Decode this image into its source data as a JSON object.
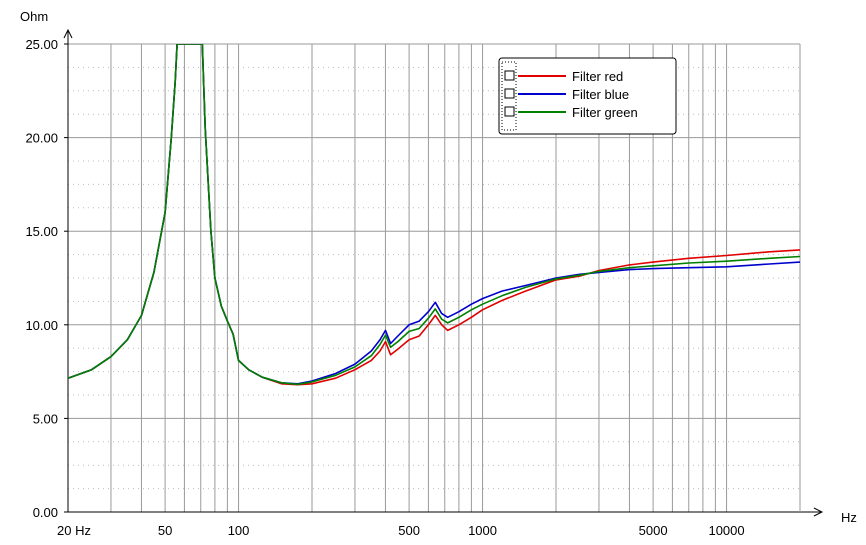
{
  "chart_data": {
    "type": "line",
    "title": "",
    "ylabel": "Ohm",
    "xlabel": "Hz",
    "x_scale": "log",
    "xlim": [
      20,
      20000
    ],
    "ylim": [
      0,
      25
    ],
    "grid": true,
    "legend_position": "top-right",
    "x_tick_labels": [
      {
        "value": 20,
        "label": "20 Hz"
      },
      {
        "value": 50,
        "label": "50"
      },
      {
        "value": 100,
        "label": "100"
      },
      {
        "value": 500,
        "label": "500"
      },
      {
        "value": 1000,
        "label": "1000"
      },
      {
        "value": 5000,
        "label": "5000"
      },
      {
        "value": 10000,
        "label": "10000"
      }
    ],
    "y_tick_labels": [
      {
        "value": 0,
        "label": "0.00"
      },
      {
        "value": 5,
        "label": "5.00"
      },
      {
        "value": 10,
        "label": "10.00"
      },
      {
        "value": 15,
        "label": "15.00"
      },
      {
        "value": 20,
        "label": "20.00"
      },
      {
        "value": 25,
        "label": "25.00"
      }
    ],
    "series": [
      {
        "name": "Filter red",
        "color": "#e00000",
        "x": [
          20,
          25,
          30,
          35,
          40,
          45,
          50,
          53,
          55,
          56,
          71,
          73,
          77,
          80,
          85,
          90,
          95,
          100,
          110,
          125,
          150,
          175,
          200,
          250,
          300,
          350,
          380,
          400,
          420,
          450,
          500,
          550,
          600,
          640,
          680,
          720,
          800,
          900,
          1000,
          1200,
          1500,
          2000,
          2500,
          3000,
          4000,
          5000,
          7000,
          10000,
          15000,
          20000
        ],
        "y": [
          7.15,
          7.6,
          8.3,
          9.2,
          10.5,
          12.8,
          16.0,
          20.0,
          23.0,
          25.0,
          25.0,
          20.5,
          15.0,
          12.5,
          11.0,
          10.2,
          9.5,
          8.1,
          7.6,
          7.2,
          6.85,
          6.8,
          6.85,
          7.15,
          7.6,
          8.1,
          8.6,
          9.1,
          8.4,
          8.7,
          9.2,
          9.4,
          10.0,
          10.5,
          10.0,
          9.7,
          10.0,
          10.4,
          10.8,
          11.3,
          11.8,
          12.4,
          12.6,
          12.9,
          13.2,
          13.35,
          13.55,
          13.7,
          13.9,
          14.0
        ]
      },
      {
        "name": "Filter blue",
        "color": "#0000cc",
        "x": [
          20,
          25,
          30,
          35,
          40,
          45,
          50,
          53,
          55,
          56,
          71,
          73,
          77,
          80,
          85,
          90,
          95,
          100,
          110,
          125,
          150,
          175,
          200,
          250,
          300,
          350,
          380,
          400,
          420,
          450,
          500,
          550,
          600,
          640,
          680,
          720,
          800,
          900,
          1000,
          1200,
          1500,
          2000,
          2500,
          3000,
          4000,
          5000,
          7000,
          10000,
          15000,
          20000
        ],
        "y": [
          7.15,
          7.6,
          8.3,
          9.2,
          10.5,
          12.8,
          16.0,
          20.0,
          23.0,
          25.0,
          25.0,
          20.5,
          15.0,
          12.5,
          11.0,
          10.2,
          9.5,
          8.1,
          7.6,
          7.2,
          6.9,
          6.85,
          7.0,
          7.4,
          7.9,
          8.6,
          9.2,
          9.7,
          9.0,
          9.4,
          10.0,
          10.2,
          10.7,
          11.2,
          10.6,
          10.4,
          10.7,
          11.1,
          11.4,
          11.8,
          12.1,
          12.5,
          12.7,
          12.8,
          12.95,
          13.0,
          13.05,
          13.1,
          13.25,
          13.35
        ]
      },
      {
        "name": "Filter green",
        "color": "#008000",
        "x": [
          20,
          25,
          30,
          35,
          40,
          45,
          50,
          53,
          55,
          56,
          71,
          73,
          77,
          80,
          85,
          90,
          95,
          100,
          110,
          125,
          150,
          175,
          200,
          250,
          300,
          350,
          380,
          400,
          420,
          450,
          500,
          550,
          600,
          640,
          680,
          720,
          800,
          900,
          1000,
          1200,
          1500,
          2000,
          2500,
          3000,
          4000,
          5000,
          7000,
          10000,
          15000,
          20000
        ],
        "y": [
          7.15,
          7.6,
          8.3,
          9.2,
          10.5,
          12.8,
          16.0,
          20.0,
          23.0,
          25.0,
          25.0,
          20.5,
          15.0,
          12.5,
          11.0,
          10.2,
          9.5,
          8.1,
          7.6,
          7.2,
          6.9,
          6.82,
          6.95,
          7.3,
          7.75,
          8.35,
          8.95,
          9.45,
          8.8,
          9.1,
          9.65,
          9.8,
          10.35,
          10.85,
          10.3,
          10.1,
          10.4,
          10.8,
          11.1,
          11.55,
          12.0,
          12.45,
          12.65,
          12.85,
          13.05,
          13.15,
          13.3,
          13.4,
          13.55,
          13.65
        ]
      }
    ]
  }
}
